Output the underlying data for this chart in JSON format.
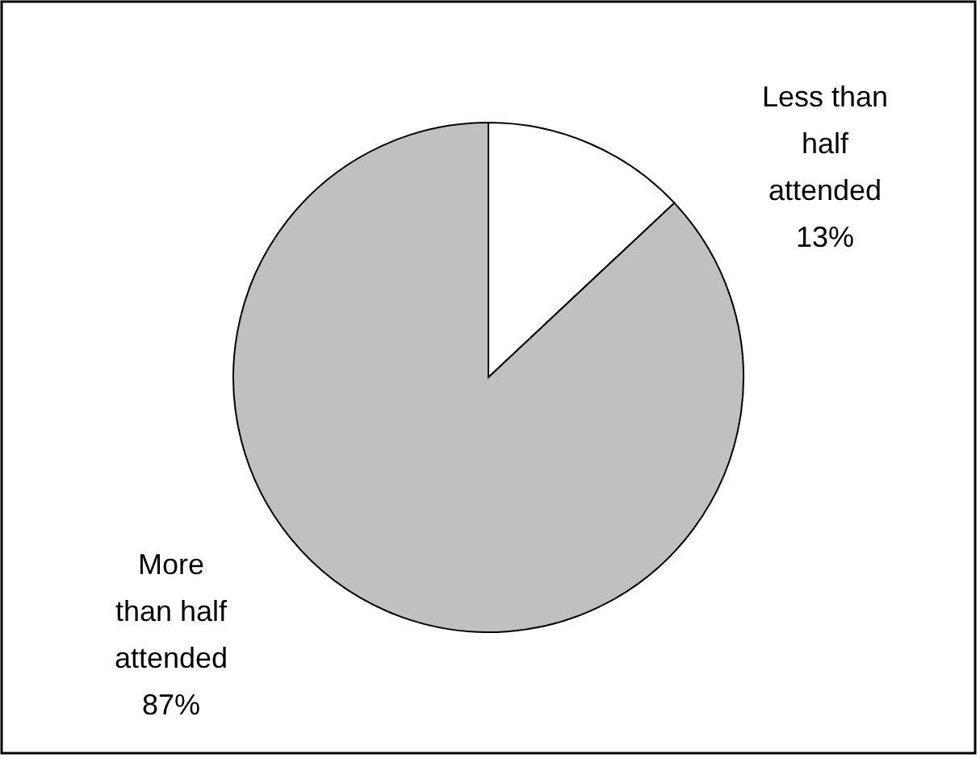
{
  "chart_data": {
    "type": "pie",
    "categories": [
      "Less than\nhalf\nattended",
      "More\nthan half\nattended"
    ],
    "values": [
      13,
      87
    ],
    "colors": [
      "#ffffff",
      "#c0c0c0"
    ],
    "value_labels": [
      "13%",
      "87%"
    ]
  }
}
